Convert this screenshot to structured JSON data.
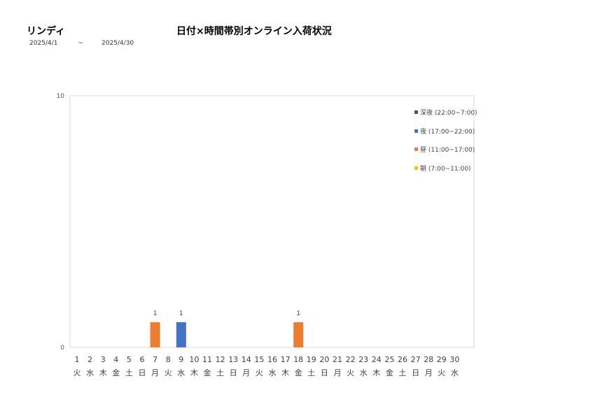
{
  "header": {
    "brand": "リンディ",
    "title": "日付×時間帯別オンライン入荷状況",
    "date_from": "2025/4/1",
    "date_sep": "~",
    "date_to": "2025/4/30"
  },
  "chart_data": {
    "type": "bar",
    "stacked": true,
    "title": "日付×時間帯別オンライン入荷状況",
    "ylim": [
      0,
      10
    ],
    "yticks": [
      0,
      10
    ],
    "grid": false,
    "legend_position": "top-right",
    "categories": [
      "1",
      "2",
      "3",
      "4",
      "5",
      "6",
      "7",
      "8",
      "9",
      "10",
      "11",
      "12",
      "13",
      "14",
      "15",
      "16",
      "17",
      "18",
      "19",
      "20",
      "21",
      "22",
      "23",
      "24",
      "25",
      "26",
      "27",
      "28",
      "29",
      "30"
    ],
    "weekdays": [
      "火",
      "水",
      "木",
      "金",
      "土",
      "日",
      "月",
      "火",
      "水",
      "木",
      "金",
      "土",
      "日",
      "月",
      "火",
      "水",
      "木",
      "金",
      "土",
      "日",
      "月",
      "火",
      "水",
      "木",
      "金",
      "土",
      "日",
      "月",
      "火",
      "水"
    ],
    "series": [
      {
        "name": "深夜 (22:00~7:00)",
        "color": "#44546a",
        "values": [
          0,
          0,
          0,
          0,
          0,
          0,
          0,
          0,
          0,
          0,
          0,
          0,
          0,
          0,
          0,
          0,
          0,
          0,
          0,
          0,
          0,
          0,
          0,
          0,
          0,
          0,
          0,
          0,
          0,
          0
        ]
      },
      {
        "name": "夜 (17:00~22:00)",
        "color": "#4472c4",
        "values": [
          0,
          0,
          0,
          0,
          0,
          0,
          0,
          0,
          1,
          0,
          0,
          0,
          0,
          0,
          0,
          0,
          0,
          0,
          0,
          0,
          0,
          0,
          0,
          0,
          0,
          0,
          0,
          0,
          0,
          0
        ]
      },
      {
        "name": "昼 (11:00~17:00)",
        "color": "#ed7d31",
        "values": [
          0,
          0,
          0,
          0,
          0,
          0,
          1,
          0,
          0,
          0,
          0,
          0,
          0,
          0,
          0,
          0,
          0,
          1,
          0,
          0,
          0,
          0,
          0,
          0,
          0,
          0,
          0,
          0,
          0,
          0
        ]
      },
      {
        "name": "朝 (7:00~11:00)",
        "color": "#ffc000",
        "values": [
          0,
          0,
          0,
          0,
          0,
          0,
          0,
          0,
          0,
          0,
          0,
          0,
          0,
          0,
          0,
          0,
          0,
          0,
          0,
          0,
          0,
          0,
          0,
          0,
          0,
          0,
          0,
          0,
          0,
          0
        ]
      }
    ],
    "totals": [
      0,
      0,
      0,
      0,
      0,
      0,
      1,
      0,
      1,
      0,
      0,
      0,
      0,
      0,
      0,
      0,
      0,
      1,
      0,
      0,
      0,
      0,
      0,
      0,
      0,
      0,
      0,
      0,
      0,
      0
    ]
  }
}
